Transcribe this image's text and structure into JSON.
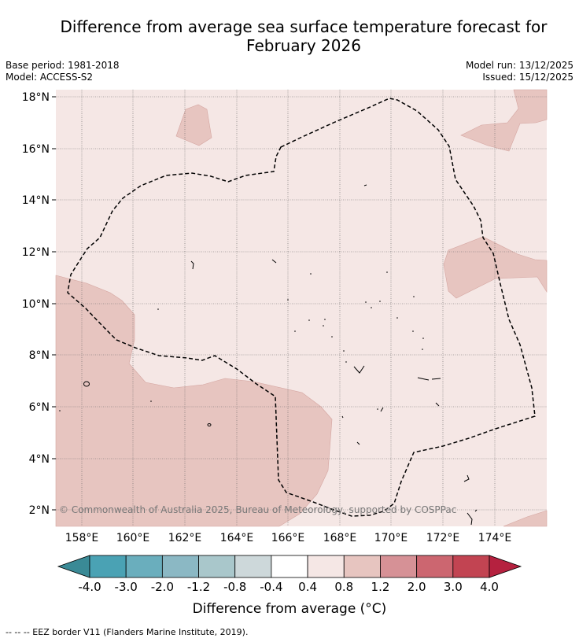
{
  "title_line1": "Difference from average sea surface temperature forecast for",
  "title_line2": "February 2026",
  "base_period": "Base period: 1981-2018",
  "model": "Model: ACCESS-S2",
  "model_run": "Model run: 13/12/2025",
  "issued": "Issued: 15/12/2025",
  "copyright": "© Commonwealth of Australia 2025, Bureau of Meteorology, supported by COSPPac",
  "lat_ticks": [
    "18°N",
    "16°N",
    "14°N",
    "12°N",
    "10°N",
    "8°N",
    "6°N",
    "4°N",
    "2°N"
  ],
  "lon_ticks": [
    "158°E",
    "160°E",
    "162°E",
    "164°E",
    "166°E",
    "168°E",
    "170°E",
    "172°E",
    "174°E"
  ],
  "colorbar": {
    "title": "Difference from average (°C)",
    "labels": [
      "-4.0",
      "-3.0",
      "-2.0",
      "-1.2",
      "-0.8",
      "-0.4",
      "0.4",
      "0.8",
      "1.2",
      "2.0",
      "3.0",
      "4.0"
    ],
    "colors": [
      "#3a8a96",
      "#4aa2b4",
      "#6aaebd",
      "#8bb8c4",
      "#a9c7cb",
      "#cdd8da",
      "#ffffff",
      "#f5e7e5",
      "#e7c5c0",
      "#d69196",
      "#cc6670",
      "#c24452",
      "#b5213f"
    ]
  },
  "map_colors": {
    "background": "#f5e7e5",
    "warm": "#e7c5c0"
  },
  "footnote": "--  --  -- EEZ border V11 (Flanders Marine Institute, 2019)."
}
